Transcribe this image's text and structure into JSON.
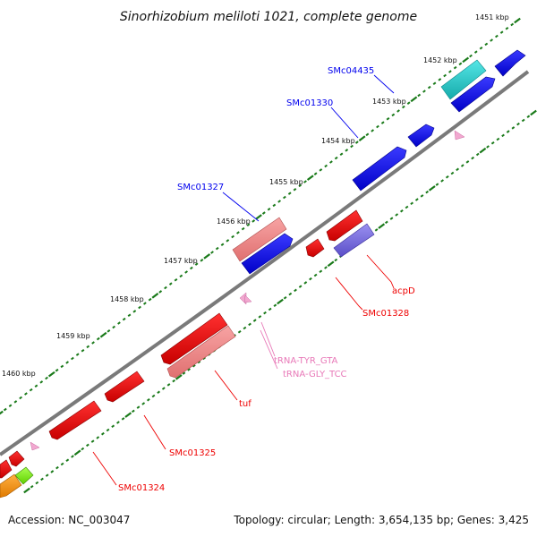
{
  "title": "Sinorhizobium meliloti 1021, complete genome",
  "kbp_ticks": [
    "1451 kbp",
    "1452 kbp",
    "1453 kbp",
    "1454 kbp",
    "1455 kbp",
    "1456 kbp",
    "1457 kbp",
    "1458 kbp",
    "1459 kbp",
    "1460 kbp"
  ],
  "labels": {
    "SMc04435": "SMc04435",
    "SMc01330": "SMc01330",
    "SMc01327": "SMc01327",
    "acpD": "acpD",
    "SMc01328": "SMc01328",
    "tRNA_TYR": "tRNA-TYR_GTA",
    "tRNA_GLY": "tRNA-GLY_TCC",
    "tuf": "tuf",
    "SMc01325": "SMc01325",
    "SMc01324": "SMc01324"
  },
  "colors": {
    "forward_gene": "#0000ee",
    "reverse_gene": "#ee0000",
    "pink_gene": "#f08a8a",
    "purple_gene": "#7b6fe0",
    "cyan_gene": "#22cccc",
    "trna": "#e879b8",
    "backbone": "#7a7a7a",
    "tick": "#1a7a1a"
  },
  "footer": {
    "accession": "Accession: NC_003047",
    "summary": "Topology: circular; Length: 3,654,135 bp; Genes: 3,425"
  }
}
